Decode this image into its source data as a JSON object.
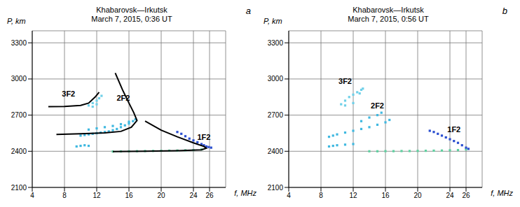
{
  "chart_data": [
    {
      "type": "scatter",
      "title": "Khabarovsk—Irkutsk",
      "subtitle": "March 7, 2015, 0:36 UT",
      "panel": "a",
      "x_label": "f, MHz",
      "y_label": "P, km",
      "xlim": [
        4,
        28
      ],
      "xticks": [
        4,
        8,
        12,
        16,
        20,
        24,
        26
      ],
      "ylim": [
        2100,
        3400
      ],
      "yticks": [
        2100,
        2400,
        2700,
        3000,
        3300
      ],
      "grid": true,
      "series": [
        {
          "name": "1F2",
          "type": "scatter",
          "color": "#5fd0a0",
          "marker": "square",
          "x": [
            14,
            15,
            16,
            17,
            18,
            19,
            20,
            21,
            22,
            23,
            24,
            25
          ],
          "y": [
            2398,
            2399,
            2400,
            2401,
            2402,
            2403,
            2404,
            2405,
            2406,
            2408,
            2410,
            2415
          ]
        },
        {
          "name": "1F2",
          "type": "scatter",
          "color": "#2b4fd0",
          "marker": "square",
          "x": [
            22,
            22.5,
            23,
            23.5,
            24,
            24.5,
            25,
            25.3,
            25.6,
            25.9,
            26.2
          ],
          "y": [
            2560,
            2545,
            2525,
            2505,
            2490,
            2475,
            2460,
            2450,
            2440,
            2435,
            2430
          ]
        },
        {
          "name": "2F2",
          "type": "scatter",
          "color": "#3fb8e0",
          "marker": "square",
          "x": [
            10,
            10.5,
            11,
            11.5,
            12,
            12.5,
            13,
            13.5,
            14,
            14.5,
            15,
            15.5,
            16,
            16.5,
            16.8,
            11,
            12,
            13,
            14,
            15,
            16,
            9.5,
            10,
            10.5,
            11
          ],
          "y": [
            2530,
            2535,
            2540,
            2545,
            2550,
            2555,
            2560,
            2565,
            2575,
            2585,
            2600,
            2615,
            2630,
            2650,
            2665,
            2580,
            2590,
            2600,
            2610,
            2625,
            2645,
            2440,
            2445,
            2450,
            2445
          ]
        },
        {
          "name": "3F2",
          "type": "scatter",
          "color": "#6fd0e8",
          "marker": "square",
          "x": [
            11,
            11.5,
            12,
            12.3,
            12.6,
            11.5,
            12
          ],
          "y": [
            2780,
            2800,
            2820,
            2840,
            2860,
            2770,
            2790
          ]
        },
        {
          "name": "3F2",
          "type": "line",
          "color": "#000000",
          "line_style": "solid",
          "x": [
            6,
            8,
            10,
            11,
            11.8,
            12.3
          ],
          "y": [
            2770,
            2772,
            2780,
            2800,
            2850,
            2890
          ]
        },
        {
          "name": "2F2",
          "type": "line",
          "color": "#000000",
          "line_style": "solid",
          "x": [
            7,
            10,
            13,
            15,
            16.3,
            17,
            16.6,
            16,
            15.2,
            14.3
          ],
          "y": [
            2540,
            2545,
            2552,
            2565,
            2600,
            2655,
            2720,
            2800,
            2910,
            3050
          ]
        },
        {
          "name": "1F2",
          "type": "line",
          "color": "#000000",
          "line_style": "solid",
          "x": [
            18,
            20,
            22,
            24,
            25.3,
            25.6,
            25,
            22,
            18,
            14
          ],
          "y": [
            2650,
            2575,
            2520,
            2470,
            2440,
            2425,
            2412,
            2405,
            2400,
            2398
          ]
        }
      ],
      "annotations": [
        {
          "text": "3F2",
          "x": 8.5,
          "y": 2880
        },
        {
          "text": "2F2",
          "x": 15.3,
          "y": 2840
        },
        {
          "text": "1F2",
          "x": 25.3,
          "y": 2520
        }
      ]
    },
    {
      "type": "scatter",
      "title": "Khabarovsk—Irkutsk",
      "subtitle": "March 7, 2015, 0:56 UT",
      "panel": "b",
      "x_label": "f, MHz",
      "y_label": "P, km",
      "xlim": [
        4,
        28
      ],
      "xticks": [
        4,
        8,
        12,
        16,
        20,
        24,
        26
      ],
      "ylim": [
        2100,
        3400
      ],
      "yticks": [
        2100,
        2400,
        2700,
        3000,
        3300
      ],
      "grid": true,
      "series": [
        {
          "name": "1F2",
          "type": "scatter",
          "color": "#5fd0a0",
          "marker": "square",
          "x": [
            14,
            15,
            16,
            17,
            18,
            19,
            20,
            21,
            22,
            23,
            24,
            25,
            26
          ],
          "y": [
            2400,
            2400,
            2401,
            2401,
            2402,
            2402,
            2403,
            2404,
            2405,
            2406,
            2408,
            2410,
            2415
          ]
        },
        {
          "name": "1F2",
          "type": "scatter",
          "color": "#2b4fd0",
          "marker": "square",
          "x": [
            21.5,
            22,
            22.5,
            23,
            23.5,
            24,
            24.5,
            25,
            25.5,
            26,
            26.3
          ],
          "y": [
            2570,
            2560,
            2545,
            2530,
            2515,
            2500,
            2485,
            2470,
            2450,
            2430,
            2420
          ]
        },
        {
          "name": "2F2",
          "type": "scatter",
          "color": "#3fb8e0",
          "marker": "square",
          "x": [
            9,
            9.5,
            10,
            11,
            12,
            13,
            14,
            15,
            16,
            16.5,
            13,
            14,
            15,
            15.5,
            9,
            9.5,
            10,
            11,
            12
          ],
          "y": [
            2520,
            2530,
            2540,
            2555,
            2570,
            2585,
            2600,
            2620,
            2640,
            2660,
            2650,
            2680,
            2700,
            2720,
            2440,
            2445,
            2450,
            2455,
            2460
          ]
        },
        {
          "name": "3F2",
          "type": "scatter",
          "color": "#6fd0e8",
          "marker": "square",
          "x": [
            10.5,
            11,
            11.5,
            12,
            12.5,
            13,
            13.2,
            11,
            12,
            12.8
          ],
          "y": [
            2790,
            2820,
            2850,
            2870,
            2890,
            2910,
            2920,
            2780,
            2800,
            2880
          ]
        }
      ],
      "annotations": [
        {
          "text": "3F2",
          "x": 11,
          "y": 2980
        },
        {
          "text": "2F2",
          "x": 15,
          "y": 2780
        },
        {
          "text": "1F2",
          "x": 24.5,
          "y": 2580
        }
      ]
    }
  ]
}
